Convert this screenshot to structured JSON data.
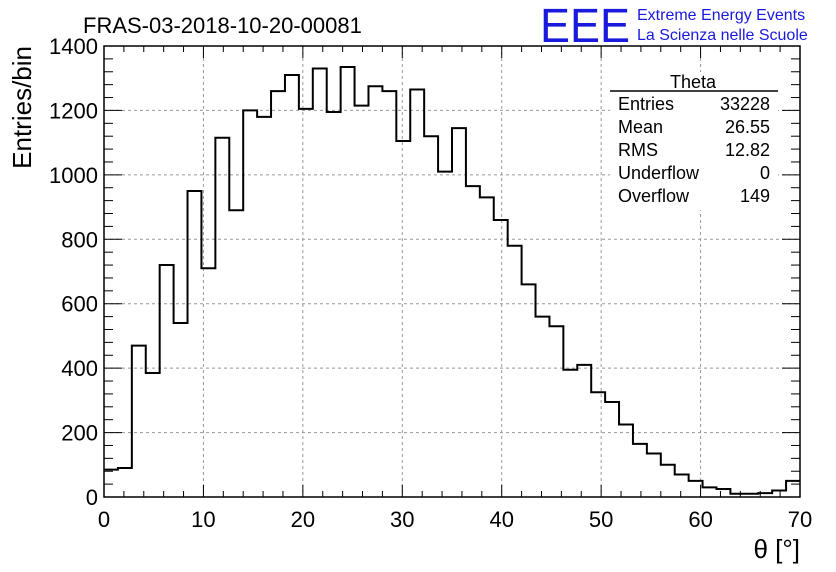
{
  "chart_data": {
    "type": "bar",
    "style": "step-histogram",
    "title": "FRAS-03-2018-10-20-00081",
    "xlabel": "θ [°]",
    "ylabel": "Entries/bin",
    "xlim": [
      0,
      70
    ],
    "ylim": [
      0,
      1400
    ],
    "bin_width": 1.4,
    "grid": true,
    "x_ticks": [
      0,
      10,
      20,
      30,
      40,
      50,
      60,
      70
    ],
    "x_tick_labels": [
      "0",
      "10",
      "20",
      "30",
      "40",
      "50",
      "60",
      "70"
    ],
    "y_ticks": [
      0,
      200,
      400,
      600,
      800,
      1000,
      1200,
      1400
    ],
    "y_tick_labels": [
      "0",
      "200",
      "400",
      "600",
      "800",
      "1000",
      "1200",
      "1400"
    ],
    "values": [
      85,
      90,
      470,
      385,
      720,
      540,
      950,
      710,
      1115,
      890,
      1200,
      1180,
      1260,
      1310,
      1205,
      1330,
      1195,
      1335,
      1215,
      1275,
      1260,
      1105,
      1265,
      1120,
      1010,
      1145,
      965,
      930,
      860,
      780,
      660,
      560,
      530,
      395,
      410,
      325,
      295,
      225,
      165,
      135,
      100,
      70,
      50,
      30,
      25,
      10,
      10,
      12,
      20,
      50
    ],
    "stats_box": {
      "title": "Theta",
      "rows": [
        {
          "label": "Entries",
          "value": "33228"
        },
        {
          "label": "Mean",
          "value": "26.55"
        },
        {
          "label": "RMS",
          "value": "12.82"
        },
        {
          "label": "Underflow",
          "value": "0"
        },
        {
          "label": "Overflow",
          "value": "149"
        }
      ]
    }
  },
  "branding": {
    "logo_text": "EEE",
    "line1": "Extreme Energy Events",
    "line2": "La Scienza nelle Scuole",
    "color": "#1a1adc"
  },
  "colors": {
    "line": "#000000",
    "grid": "#999999",
    "background": "#ffffff"
  }
}
